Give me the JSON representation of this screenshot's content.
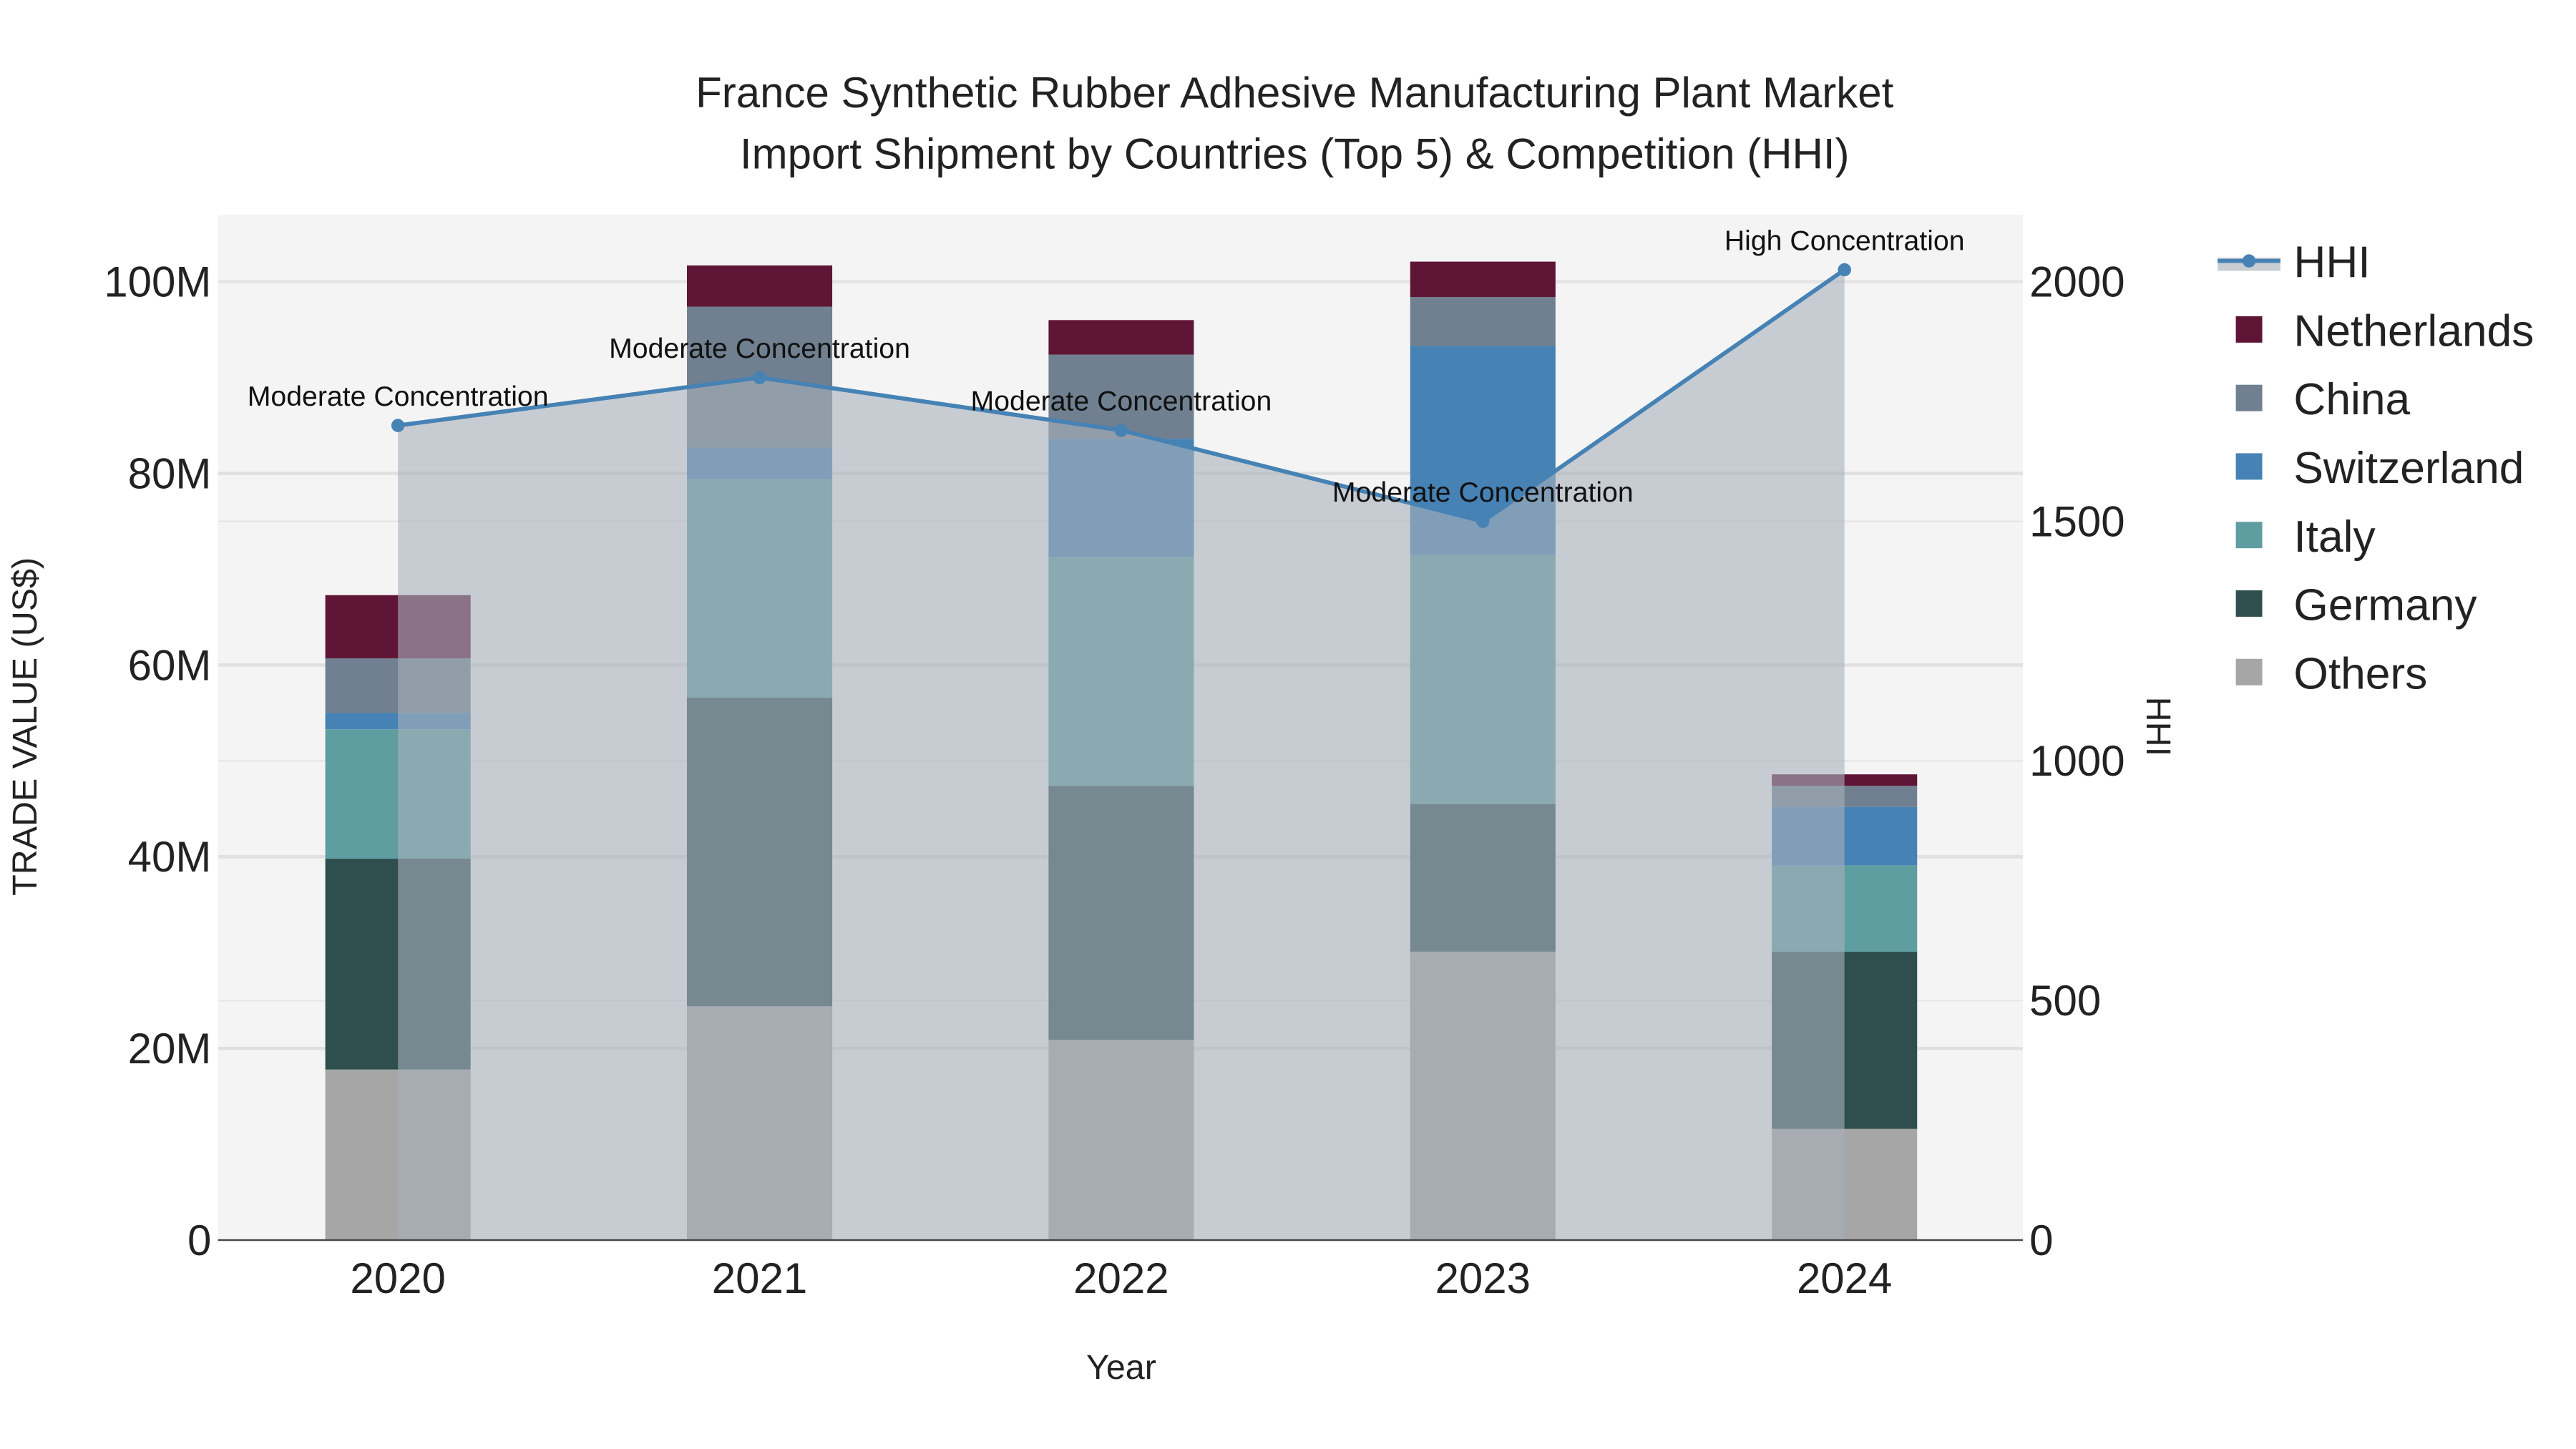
{
  "chart_data": {
    "type": "bar",
    "stacked": true,
    "title_line1": "France Synthetic Rubber Adhesive Manufacturing Plant Market",
    "title_line2": "Import Shipment by Countries (Top 5) & Competition (HHI)",
    "xlabel": "Year",
    "ylabel": "TRADE VALUE (US$)",
    "y2label": "HHI",
    "categories": [
      "2020",
      "2021",
      "2022",
      "2023",
      "2024"
    ],
    "ylim": [
      0,
      107000000
    ],
    "y_ticks": [
      0,
      20000000,
      40000000,
      60000000,
      80000000,
      100000000
    ],
    "y_tick_labels": [
      "0",
      "20M",
      "40M",
      "60M",
      "80M",
      "100M"
    ],
    "y2lim": [
      0,
      2140
    ],
    "y2_ticks": [
      0,
      500,
      1000,
      1500,
      2000
    ],
    "y2_tick_labels": [
      "0",
      "500",
      "1000",
      "1500",
      "2000"
    ],
    "series": [
      {
        "name": "Others",
        "color": "#a6a6a6",
        "values": [
          17800000,
          24400000,
          20900000,
          30100000,
          11600000
        ]
      },
      {
        "name": "Germany",
        "color": "#2f4f4f",
        "values": [
          22000000,
          32200000,
          26500000,
          15400000,
          18500000
        ]
      },
      {
        "name": "Italy",
        "color": "#5f9ea0",
        "values": [
          13500000,
          22800000,
          23900000,
          26000000,
          9000000
        ]
      },
      {
        "name": "Switzerland",
        "color": "#4682b4",
        "values": [
          1700000,
          3300000,
          12300000,
          21800000,
          6100000
        ]
      },
      {
        "name": "China",
        "color": "#708090",
        "values": [
          5700000,
          14700000,
          8800000,
          5100000,
          2200000
        ]
      },
      {
        "name": "Netherlands",
        "color": "#5f1535",
        "values": [
          6600000,
          4300000,
          3600000,
          3700000,
          1200000
        ]
      }
    ],
    "hhi": {
      "name": "HHI",
      "color": "#4682b4",
      "values": [
        1700,
        1800,
        1690,
        1500,
        2025
      ],
      "annotations": [
        "Moderate Concentration",
        "Moderate Concentration",
        "Moderate Concentration",
        "Moderate Concentration",
        "High Concentration"
      ]
    },
    "legend": [
      "HHI",
      "Netherlands",
      "China",
      "Switzerland",
      "Italy",
      "Germany",
      "Others"
    ],
    "legend_placement": "right",
    "grid": true
  }
}
